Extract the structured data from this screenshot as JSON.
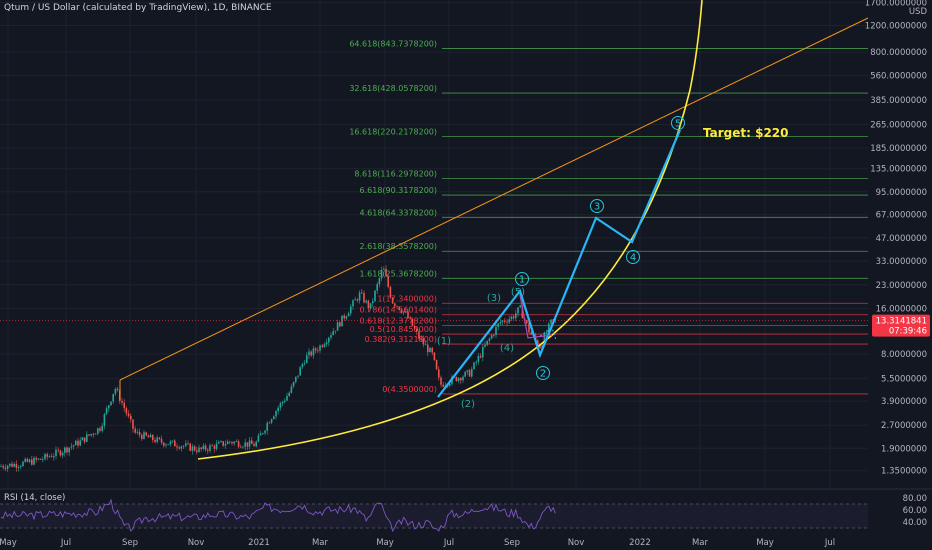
{
  "header": {
    "title": "Qtum / US Dollar (calculated by TradingView), 1D, BINANCE"
  },
  "price_axis": {
    "unit": "USD",
    "ticks": [
      "1700.0000000",
      "1200.0000000",
      "800.0000000",
      "560.0000000",
      "385.0000000",
      "265.0000000",
      "185.0000000",
      "135.0000000",
      "95.0000000",
      "67.0000000",
      "47.0000000",
      "33.0000000",
      "23.0000000",
      "16.0000000",
      "8.0000000",
      "5.5000000",
      "3.9000000",
      "2.7000000",
      "1.9000000",
      "1.3500000"
    ],
    "tick_values": [
      1700,
      1200,
      800,
      560,
      385,
      265,
      185,
      135,
      95,
      67,
      47,
      33,
      23,
      16,
      8,
      5.5,
      3.9,
      2.7,
      1.9,
      1.35
    ],
    "current_price": "13.3141841",
    "countdown": "07:39:46",
    "current_color": "#f23645"
  },
  "time_axis": {
    "labels": [
      "May",
      "Jul",
      "Sep",
      "Nov",
      "2021",
      "Mar",
      "May",
      "Jul",
      "Sep",
      "Nov",
      "2022",
      "Mar",
      "May",
      "Jul"
    ]
  },
  "fib_levels": [
    {
      "label": "64.618(843.7378200)",
      "value": 843.73782,
      "color": "#4caf50"
    },
    {
      "label": "32.618(428.0578200)",
      "value": 428.05782,
      "color": "#4caf50"
    },
    {
      "label": "16.618(220.2178200)",
      "value": 220.21782,
      "color": "#4caf50"
    },
    {
      "label": "8.618(116.2978200)",
      "value": 116.29782,
      "color": "#4caf50"
    },
    {
      "label": "6.618(90.3178200)",
      "value": 90.31782,
      "color": "#4caf50"
    },
    {
      "label": "4.618(64.3378200)",
      "value": 64.33782,
      "color": "#4caf50"
    },
    {
      "label": "2.618(38.3578200)",
      "value": 38.35782,
      "color": "#4caf50"
    },
    {
      "label": "1.618(25.3678200)",
      "value": 25.36782,
      "color": "#4caf50"
    },
    {
      "label": "1(17.3400000)",
      "value": 17.34,
      "color": "#f23645"
    },
    {
      "label": "0.786(14.5601400)",
      "value": 14.56014,
      "color": "#f23645"
    },
    {
      "label": "0.618(12.3778200)",
      "value": 12.37782,
      "color": "#f23645"
    },
    {
      "label": "0.5(10.8450000)",
      "value": 10.845,
      "color": "#f23645"
    },
    {
      "label": "0.382(9.3121800)",
      "value": 9.31218,
      "color": "#f23645"
    },
    {
      "label": "0(4.3500000)",
      "value": 4.35,
      "color": "#f23645"
    }
  ],
  "annotations": {
    "target": "Target: $220",
    "wave_labels": [
      "1",
      "2",
      "3",
      "4",
      "5"
    ],
    "small_wave_labels": [
      "(1)",
      "(2)",
      "(3)",
      "(4)",
      "(5)"
    ]
  },
  "rsi": {
    "title": "RSI (14, close)",
    "ticks": [
      "80.00",
      "60.00",
      "40.00"
    ],
    "tick_values": [
      80,
      60,
      40
    ]
  },
  "chart_data": {
    "type": "line",
    "title": "Qtum / US Dollar (calculated by TradingView), 1D, BINANCE",
    "yscale": "log",
    "ylim": [
      1.2,
      2000
    ],
    "series": [
      {
        "name": "",
        "x": [
          "2020-04",
          "2020-06",
          "2020-07",
          "2020-08",
          "2020-09",
          "2020-10",
          "2020-11",
          "2020-12",
          "2021-01",
          "2021-02",
          "2021-03",
          "2021-04",
          "2021-05",
          "2021-06",
          "2021-07",
          "2021-08",
          "2021-09",
          "2021-10"
        ],
        "values": [
          1.45,
          1.7,
          2.2,
          3.5,
          2.4,
          2.0,
          1.8,
          2.1,
          3.2,
          6.0,
          8.5,
          16.0,
          20.0,
          9.0,
          5.0,
          10.0,
          14.0,
          13.3
        ]
      }
    ],
    "projection": [
      {
        "label": "",
        "x": "2021-10",
        "y": 13.3
      },
      {
        "label": "3",
        "x": "2021-12",
        "y": 64
      },
      {
        "label": "4",
        "x": "2022-01",
        "y": 42
      },
      {
        "label": "5",
        "x": "2022-03",
        "y": 220
      }
    ]
  }
}
